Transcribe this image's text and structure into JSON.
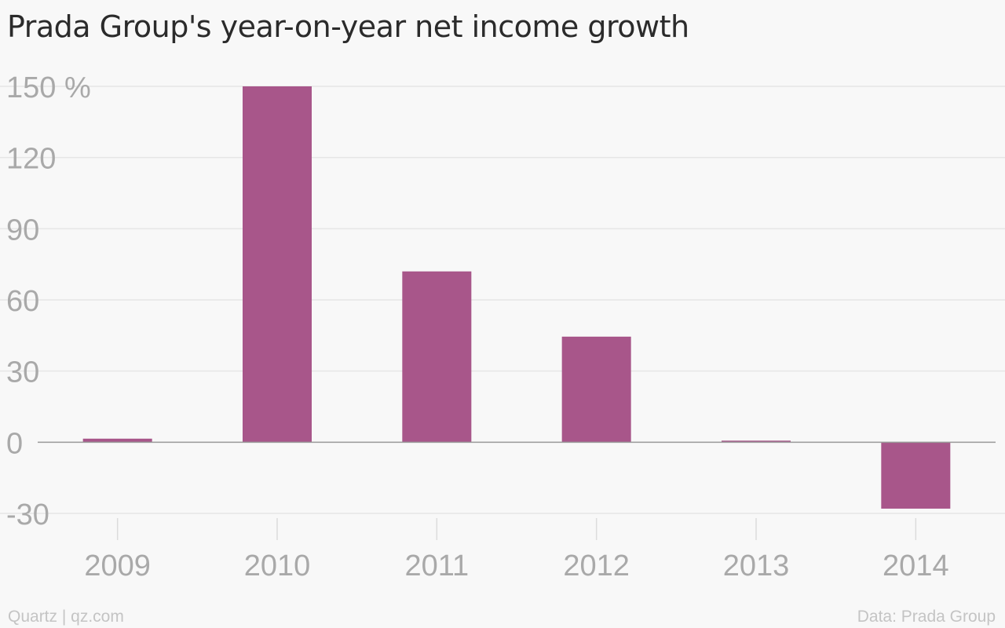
{
  "chart_data": {
    "type": "bar",
    "title": "Prada Group's year-on-year net income growth",
    "categories": [
      "2009",
      "2010",
      "2011",
      "2012",
      "2013",
      "2014"
    ],
    "values": [
      1.5,
      150,
      72,
      44.5,
      0.3,
      -28
    ],
    "xlabel": "",
    "ylabel": "",
    "ylim": [
      -30,
      150
    ],
    "yticks": [
      {
        "value": 150,
        "label": "150 %"
      },
      {
        "value": 120,
        "label": "120"
      },
      {
        "value": 90,
        "label": "90"
      },
      {
        "value": 60,
        "label": "60"
      },
      {
        "value": 30,
        "label": "30"
      },
      {
        "value": 0,
        "label": "0"
      },
      {
        "value": -30,
        "label": "-30"
      }
    ],
    "grid": true,
    "bar_color": "#a8568a"
  },
  "footer": {
    "credit": "Quartz | qz.com",
    "source": "Data: Prada Group"
  }
}
